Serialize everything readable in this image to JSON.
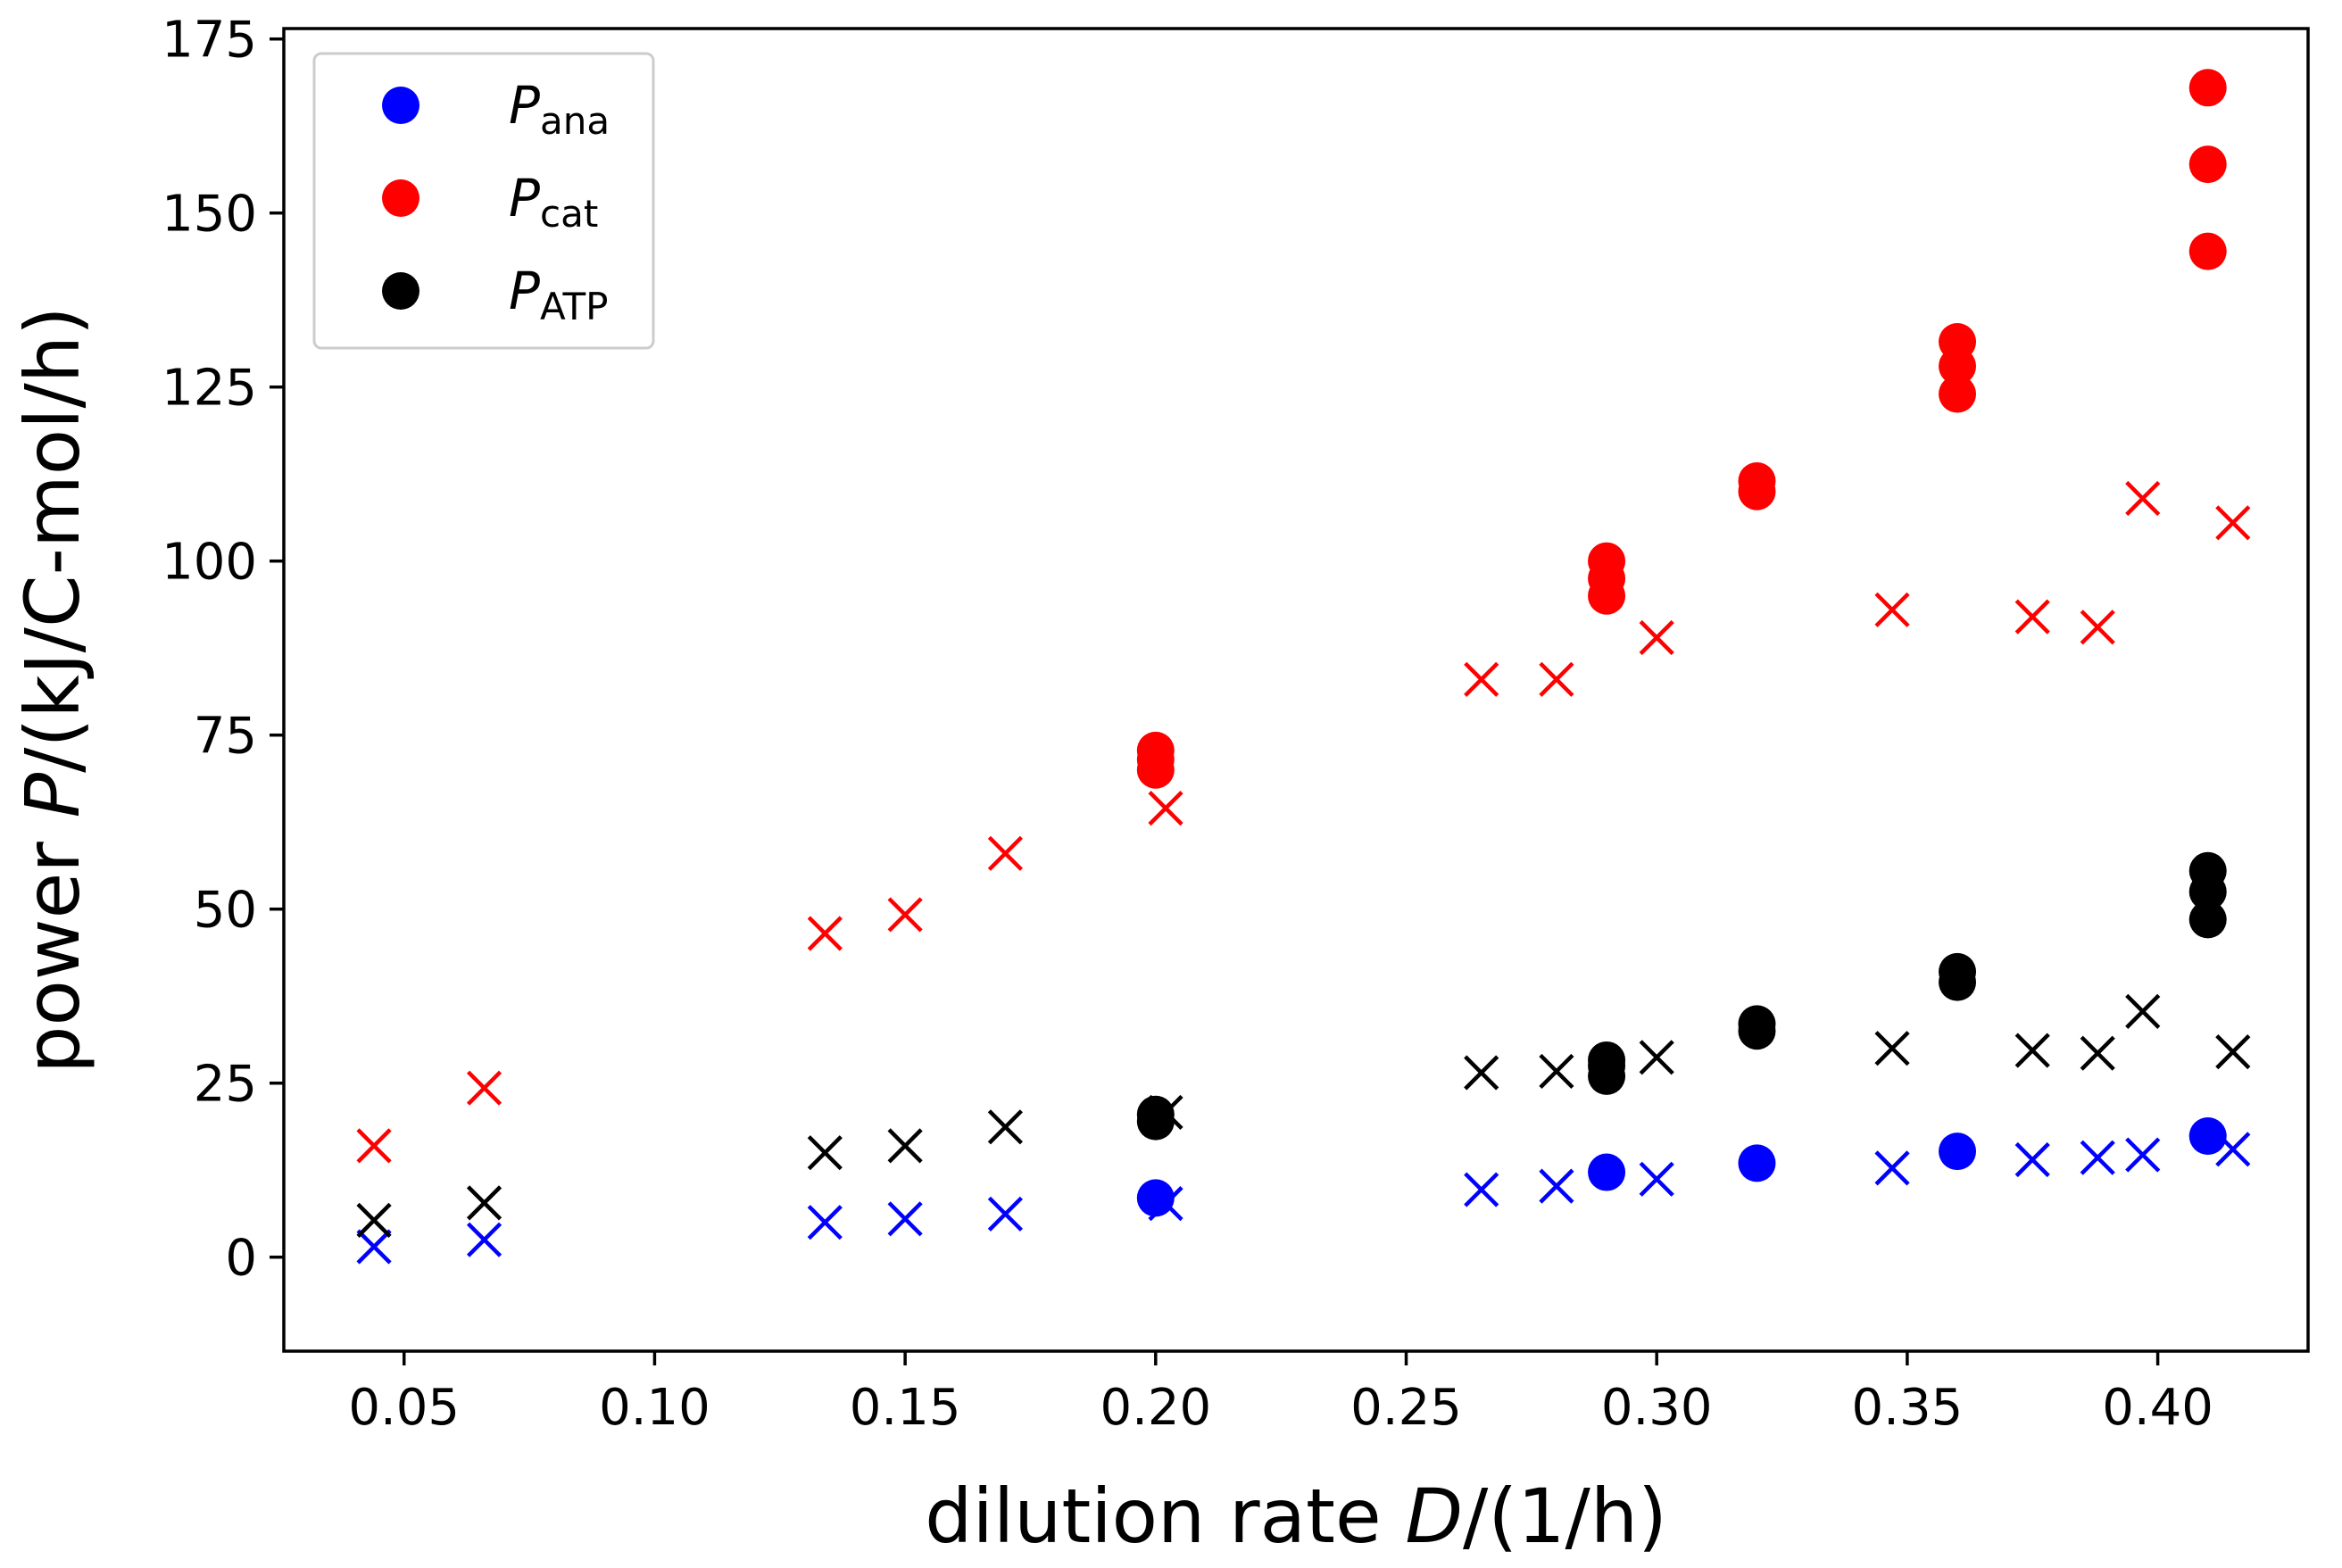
{
  "chart_data": {
    "type": "scatter",
    "xlabel": {
      "prefix": "dilution rate ",
      "symbol": "D",
      "suffix": "/(1/h)"
    },
    "ylabel": {
      "prefix": "power ",
      "symbol": "P",
      "suffix": "/(kJ/C-mol/h)"
    },
    "xlim": [
      0.026,
      0.43
    ],
    "ylim": [
      -13.5,
      176.5
    ],
    "xticks": [
      0.05,
      0.1,
      0.15,
      0.2,
      0.25,
      0.3,
      0.35,
      0.4
    ],
    "xtick_labels": [
      "0.05",
      "0.10",
      "0.15",
      "0.20",
      "0.25",
      "0.30",
      "0.35",
      "0.40"
    ],
    "yticks": [
      0,
      25,
      50,
      75,
      100,
      125,
      150,
      175
    ],
    "ytick_labels": [
      "0",
      "25",
      "50",
      "75",
      "100",
      "125",
      "150",
      "175"
    ],
    "legend": {
      "position": "top-left",
      "entries": [
        {
          "symbol": "P",
          "sub": "ana",
          "color": "#0000ff"
        },
        {
          "symbol": "P",
          "sub": "cat",
          "color": "#ff0000"
        },
        {
          "symbol": "P",
          "sub": "ATP",
          "color": "#000000"
        }
      ]
    },
    "series": [
      {
        "name": "P_ana measured",
        "marker": "circle",
        "color": "#0000ff",
        "points": [
          [
            0.2,
            8.5
          ],
          [
            0.29,
            12.2
          ],
          [
            0.32,
            13.5
          ],
          [
            0.36,
            15.2
          ],
          [
            0.41,
            17.4
          ]
        ]
      },
      {
        "name": "P_cat measured",
        "marker": "circle",
        "color": "#ff0000",
        "points": [
          [
            0.2,
            70.0
          ],
          [
            0.2,
            71.5
          ],
          [
            0.2,
            72.8
          ],
          [
            0.29,
            95.0
          ],
          [
            0.29,
            97.5
          ],
          [
            0.29,
            100.0
          ],
          [
            0.32,
            110.0
          ],
          [
            0.32,
            111.5
          ],
          [
            0.36,
            124.0
          ],
          [
            0.36,
            128.0
          ],
          [
            0.36,
            131.5
          ],
          [
            0.41,
            144.5
          ],
          [
            0.41,
            157.0
          ],
          [
            0.41,
            168.0
          ]
        ]
      },
      {
        "name": "P_ATP measured",
        "marker": "circle",
        "color": "#000000",
        "points": [
          [
            0.2,
            19.5
          ],
          [
            0.2,
            20.5
          ],
          [
            0.29,
            26.0
          ],
          [
            0.29,
            27.5
          ],
          [
            0.29,
            28.3
          ],
          [
            0.32,
            32.5
          ],
          [
            0.32,
            33.5
          ],
          [
            0.36,
            39.5
          ],
          [
            0.36,
            41.0
          ],
          [
            0.41,
            48.5
          ],
          [
            0.41,
            52.5
          ],
          [
            0.41,
            55.5
          ]
        ]
      },
      {
        "name": "P_ana model",
        "marker": "x",
        "color": "#0000ff",
        "points": [
          [
            0.044,
            1.5
          ],
          [
            0.066,
            2.5
          ],
          [
            0.134,
            5.0
          ],
          [
            0.15,
            5.5
          ],
          [
            0.17,
            6.2
          ],
          [
            0.202,
            7.7
          ],
          [
            0.265,
            9.7
          ],
          [
            0.28,
            10.2
          ],
          [
            0.3,
            11.2
          ],
          [
            0.347,
            12.8
          ],
          [
            0.375,
            14.0
          ],
          [
            0.388,
            14.3
          ],
          [
            0.397,
            14.7
          ],
          [
            0.415,
            15.5
          ]
        ]
      },
      {
        "name": "P_cat model",
        "marker": "x",
        "color": "#ff0000",
        "points": [
          [
            0.044,
            16.0
          ],
          [
            0.066,
            24.3
          ],
          [
            0.134,
            46.5
          ],
          [
            0.15,
            49.2
          ],
          [
            0.17,
            58.0
          ],
          [
            0.202,
            64.5
          ],
          [
            0.265,
            83.0
          ],
          [
            0.28,
            83.0
          ],
          [
            0.3,
            89.0
          ],
          [
            0.347,
            93.0
          ],
          [
            0.375,
            92.0
          ],
          [
            0.388,
            90.5
          ],
          [
            0.397,
            109.0
          ],
          [
            0.415,
            105.5
          ]
        ]
      },
      {
        "name": "P_ATP model",
        "marker": "x",
        "color": "#000000",
        "points": [
          [
            0.044,
            5.3
          ],
          [
            0.066,
            7.8
          ],
          [
            0.134,
            15.0
          ],
          [
            0.15,
            16.0
          ],
          [
            0.17,
            18.7
          ],
          [
            0.202,
            20.8
          ],
          [
            0.265,
            26.5
          ],
          [
            0.28,
            26.7
          ],
          [
            0.3,
            28.7
          ],
          [
            0.347,
            30.0
          ],
          [
            0.375,
            29.7
          ],
          [
            0.388,
            29.3
          ],
          [
            0.397,
            35.3
          ],
          [
            0.415,
            29.5
          ]
        ]
      }
    ]
  }
}
